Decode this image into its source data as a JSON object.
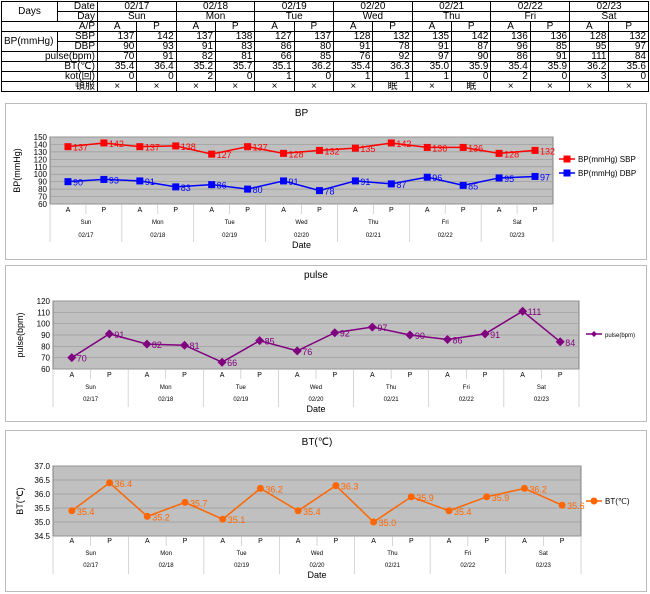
{
  "table": {
    "days_label": "Days",
    "date_label": "Date",
    "day_label": "Day",
    "ap_label": "A/P",
    "bp_label": "BP(mmHg)",
    "sbp_label": "SBP",
    "dbp_label": "DBP",
    "pulse_label": "pulse(bpm)",
    "bt_label": "BT(℃)",
    "kot_label": "kot(回)",
    "tonpuku_label": "頓服",
    "dates": [
      "02/17",
      "02/18",
      "02/19",
      "02/20",
      "02/21",
      "02/22",
      "02/23"
    ],
    "days": [
      "Sun",
      "Mon",
      "Tue",
      "Wed",
      "Thu",
      "Fri",
      "Sat"
    ],
    "ap": [
      "A",
      "P"
    ],
    "sbp": [
      "137",
      "142",
      "137",
      "138",
      "127",
      "137",
      "128",
      "132",
      "135",
      "142",
      "136",
      "136",
      "128",
      "132"
    ],
    "dbp": [
      "90",
      "93",
      "91",
      "83",
      "86",
      "80",
      "91",
      "78",
      "91",
      "87",
      "96",
      "85",
      "95",
      "97"
    ],
    "pulse": [
      "70",
      "91",
      "82",
      "81",
      "66",
      "85",
      "76",
      "92",
      "97",
      "90",
      "86",
      "91",
      "111",
      "84"
    ],
    "bt": [
      "35.4",
      "36.4",
      "35.2",
      "35.7",
      "35.1",
      "36.2",
      "35.4",
      "36.3",
      "35.0",
      "35.9",
      "35.4",
      "35.9",
      "36.2",
      "35.6"
    ],
    "kot": [
      "0",
      "0",
      "2",
      "0",
      "1",
      "0",
      "1",
      "1",
      "1",
      "0",
      "2",
      "0",
      "3",
      "0"
    ],
    "tonpuku": [
      "×",
      "×",
      "×",
      "×",
      "×",
      "×",
      "×",
      "眠",
      "×",
      "眠",
      "×",
      "×",
      "×",
      "×"
    ]
  },
  "chart_data": [
    {
      "type": "line",
      "title": "BP",
      "xlabel": "Date",
      "ylabel": "BP(mmHg)",
      "ylim": [
        60,
        150
      ],
      "yticks": [
        60,
        70,
        80,
        90,
        100,
        110,
        120,
        130,
        140,
        150
      ],
      "categories": [
        "A",
        "P",
        "A",
        "P",
        "A",
        "P",
        "A",
        "P",
        "A",
        "P",
        "A",
        "P",
        "A",
        "P"
      ],
      "days": [
        "Sun",
        "Mon",
        "Tue",
        "Wed",
        "Thu",
        "Fri",
        "Sat"
      ],
      "dates": [
        "02/17",
        "02/18",
        "02/19",
        "02/20",
        "02/21",
        "02/22",
        "02/23"
      ],
      "legend": "right",
      "grid": true,
      "series": [
        {
          "name": "BP(mmHg) SBP",
          "color": "#ff0000",
          "marker": "square",
          "values": [
            137,
            142,
            137,
            138,
            127,
            137,
            128,
            132,
            135,
            142,
            136,
            136,
            128,
            132
          ]
        },
        {
          "name": "BP(mmHg) DBP",
          "color": "#0000ff",
          "marker": "square",
          "values": [
            90,
            93,
            91,
            83,
            86,
            80,
            91,
            78,
            91,
            87,
            96,
            85,
            95,
            97
          ]
        }
      ]
    },
    {
      "type": "line",
      "title": "pulse",
      "xlabel": "Date",
      "ylabel": "pulse(bpm)",
      "ylim": [
        60,
        120
      ],
      "yticks": [
        60,
        70,
        80,
        90,
        100,
        110,
        120
      ],
      "categories": [
        "A",
        "P",
        "A",
        "P",
        "A",
        "P",
        "A",
        "P",
        "A",
        "P",
        "A",
        "P",
        "A",
        "P"
      ],
      "days": [
        "Sun",
        "Mon",
        "Tue",
        "Wed",
        "Thu",
        "Fri",
        "Sat"
      ],
      "dates": [
        "02/17",
        "02/18",
        "02/19",
        "02/20",
        "02/21",
        "02/22",
        "02/23"
      ],
      "legend": "right",
      "grid": true,
      "series": [
        {
          "name": "pulse(bpm)",
          "color": "#800080",
          "marker": "diamond",
          "values": [
            70,
            91,
            82,
            81,
            66,
            85,
            76,
            92,
            97,
            90,
            86,
            91,
            111,
            84
          ]
        }
      ]
    },
    {
      "type": "line",
      "title": "BT(℃)",
      "xlabel": "Date",
      "ylabel": "BT(℃)",
      "ylim": [
        34.5,
        37.0
      ],
      "yticks": [
        "34.5",
        "35.0",
        "35.5",
        "36.0",
        "36.5",
        "37.0"
      ],
      "categories": [
        "A",
        "P",
        "A",
        "P",
        "A",
        "P",
        "A",
        "P",
        "A",
        "P",
        "A",
        "P",
        "A",
        "P"
      ],
      "days": [
        "Sun",
        "Mon",
        "Tue",
        "Wed",
        "Thu",
        "Fri",
        "Sat"
      ],
      "dates": [
        "02/17",
        "02/18",
        "02/19",
        "02/20",
        "02/21",
        "02/22",
        "02/23"
      ],
      "legend": "right",
      "grid": true,
      "series": [
        {
          "name": "BT(℃)",
          "color": "#ff6600",
          "marker": "circle",
          "values": [
            35.4,
            36.4,
            35.2,
            35.7,
            35.1,
            36.2,
            35.4,
            36.3,
            35.0,
            35.9,
            35.4,
            35.9,
            36.2,
            35.6
          ]
        }
      ]
    }
  ]
}
